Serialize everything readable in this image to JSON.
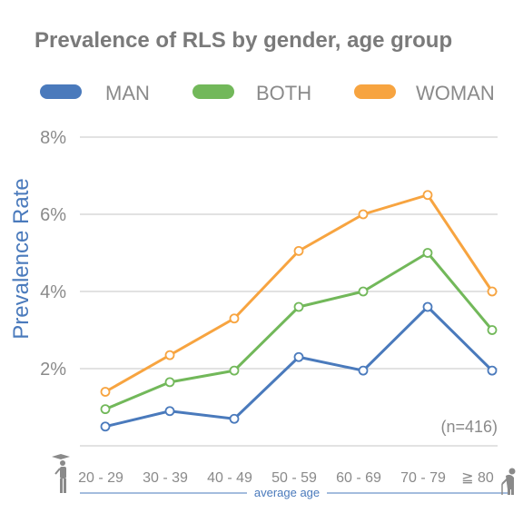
{
  "chart_data": {
    "type": "line",
    "title": "Prevalence of RLS by gender, age group",
    "ylabel": "Prevalence Rate",
    "xlabel": "average age",
    "categories": [
      "20 - 29",
      "30 - 39",
      "40 - 49",
      "50 - 59",
      "60 - 69",
      "70 - 79",
      "≧ 80"
    ],
    "ylim": [
      0,
      8
    ],
    "y_ticks": [
      2,
      4,
      6,
      8
    ],
    "y_tick_labels": [
      "2%",
      "4%",
      "6%",
      "8%"
    ],
    "annotation": "(n=416)",
    "grid": true,
    "legend_position": "top",
    "series": [
      {
        "name": "MAN",
        "color": "#4a7abc",
        "values": [
          0.5,
          0.9,
          0.7,
          2.3,
          1.95,
          3.6,
          1.95
        ]
      },
      {
        "name": "BOTH",
        "color": "#72b85a",
        "values": [
          0.95,
          1.65,
          1.95,
          3.6,
          4.0,
          5.0,
          3.0
        ]
      },
      {
        "name": "WOMAN",
        "color": "#f7a440",
        "values": [
          1.4,
          2.35,
          3.3,
          5.05,
          6.0,
          6.5,
          4.0
        ]
      }
    ],
    "icons": [
      "young-person-icon",
      "elderly-person-icon"
    ],
    "colors": {
      "title": "#7a7a7a",
      "ylabel": "#4a7abc",
      "ticks": "#8a8a8a",
      "grid": "#d0d0d0",
      "axis_line": "#4a7abc"
    }
  }
}
